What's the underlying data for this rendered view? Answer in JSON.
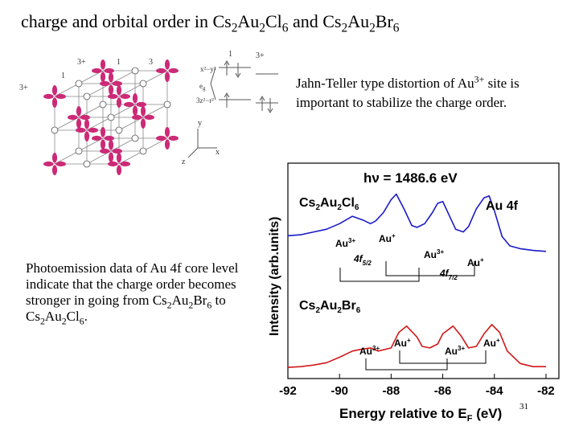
{
  "slide": {
    "title_prefix": "charge and orbital order in Cs",
    "title_1": "2",
    "title_2": "Au",
    "title_3": "2",
    "title_4": "Cl",
    "title_5": "6",
    "title_6": " and Cs",
    "title_7": "2",
    "title_8": "Au",
    "title_9": "2",
    "title_10": "Br",
    "title_11": "6",
    "jt_note_1": "Jahn-Teller type distortion of Au",
    "jt_note_sup": "3+",
    "jt_note_2": " site is important to stabilize the charge order.",
    "pe_note_1": "Photoemission data of Au 4f core level indicate that the charge order becomes stronger in going from Cs",
    "pe_s1": "2",
    "pe_t1": "Au",
    "pe_s2": "2",
    "pe_t2": "Br",
    "pe_s3": "6",
    "pe_t3": " to Cs",
    "pe_s4": "2",
    "pe_t4": "Au",
    "pe_s5": "2",
    "pe_t5": "Cl",
    "pe_s6": "6",
    "pe_end": ".",
    "page_number": "31"
  },
  "lattice": {
    "labels": {
      "l_3plus_a": "3+",
      "l_1a": "1",
      "l_3b": "3",
      "l_3plus_left": "3+",
      "l_1left": "1",
      "l_x2y2": "x²−y²",
      "l_eg": "e",
      "l_eg_sub": "g",
      "l_3z2r2": "3z²−r²",
      "l_top1": "1",
      "l_top3plus": "3+",
      "l_z": "z",
      "l_y": "y",
      "l_x": "x"
    },
    "colors": {
      "lobe": "#cc2a77",
      "frame": "#888888"
    }
  },
  "chart_data": {
    "type": "line",
    "header": "hν = 1486.6 eV",
    "ylabel": "Intensity (arb.units)",
    "xlabel_main": "Energy relative to E",
    "xlabel_sub": "F",
    "xlabel_unit": " (eV)",
    "xlim": [
      -92,
      -81.5
    ],
    "x_ticks": [
      -92,
      -90,
      -88,
      -86,
      -84,
      -82
    ],
    "x_tick_labels": [
      "-92",
      "-90",
      "-88",
      "-86",
      "-84",
      "-82"
    ],
    "series": [
      {
        "name": "Cs2Au2Cl6",
        "color": "#1a1ac8",
        "name_main": "Cs",
        "name_s1": "2",
        "name_t1": "Au",
        "name_s2": "2",
        "name_t2": "Cl",
        "name_s3": "6",
        "x": [
          -92.0,
          -91.5,
          -91.0,
          -90.5,
          -90.0,
          -89.5,
          -89.1,
          -88.8,
          -88.6,
          -88.3,
          -88.0,
          -87.8,
          -87.5,
          -87.2,
          -87.0,
          -86.7,
          -86.4,
          -86.2,
          -86.0,
          -85.7,
          -85.5,
          -85.2,
          -85.0,
          -84.7,
          -84.4,
          -84.2,
          -84.0,
          -83.7,
          -83.4,
          -83.0,
          -82.5,
          -82.0
        ],
        "y": [
          0.45,
          0.46,
          0.49,
          0.52,
          0.58,
          0.66,
          0.62,
          0.58,
          0.61,
          0.7,
          0.84,
          0.9,
          0.74,
          0.56,
          0.54,
          0.58,
          0.7,
          0.8,
          0.82,
          0.64,
          0.52,
          0.49,
          0.55,
          0.74,
          0.86,
          0.88,
          0.72,
          0.44,
          0.34,
          0.31,
          0.29,
          0.28
        ]
      },
      {
        "name": "Cs2Au2Br6",
        "color": "#d01818",
        "name_main": "Cs",
        "name_s1": "2",
        "name_t1": "Au",
        "name_s2": "2",
        "name_t2": "Br",
        "name_s3": "6",
        "x": [
          -92.0,
          -91.5,
          -91.0,
          -90.5,
          -90.0,
          -89.5,
          -89.2,
          -88.8,
          -88.5,
          -88.0,
          -87.7,
          -87.4,
          -87.0,
          -86.8,
          -86.5,
          -86.2,
          -86.0,
          -85.6,
          -85.3,
          -85.0,
          -84.7,
          -84.4,
          -84.1,
          -83.8,
          -83.5,
          -83.0,
          -82.5,
          -82.0
        ],
        "y": [
          0.05,
          0.06,
          0.08,
          0.11,
          0.18,
          0.26,
          0.28,
          0.3,
          0.26,
          0.3,
          0.5,
          0.58,
          0.44,
          0.32,
          0.3,
          0.35,
          0.48,
          0.58,
          0.46,
          0.3,
          0.32,
          0.48,
          0.6,
          0.5,
          0.26,
          0.1,
          0.06,
          0.06
        ]
      }
    ],
    "annotations": {
      "cl_au3a": "Au",
      "cl_au3a_sup": "3+",
      "cl_au1a": "Au",
      "cl_au1a_sup": "+",
      "cl_au3b": "Au",
      "cl_au3b_sup": "3+",
      "cl_au1b": "Au",
      "cl_au1b_sup": "+",
      "cl_52": "4f",
      "cl_52_sub": "5/2",
      "cl_72": "4f",
      "cl_72_sub": "7/2",
      "cl_au4f": "Au 4f",
      "br_au3a": "Au",
      "br_au3a_sup": "3+",
      "br_au1a": "Au",
      "br_au1a_sup": "+",
      "br_au3b": "Au",
      "br_au3b_sup": "3+",
      "br_au1b": "Au",
      "br_au1b_sup": "+"
    }
  }
}
